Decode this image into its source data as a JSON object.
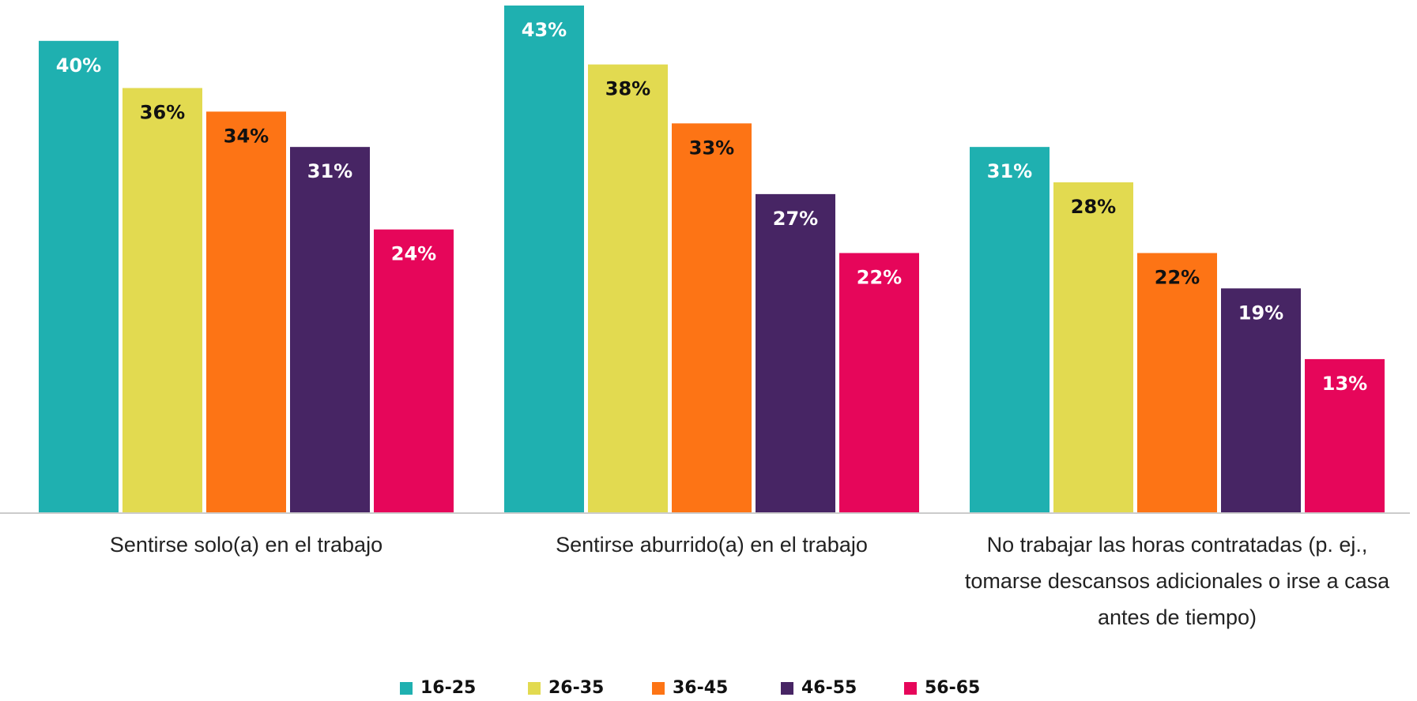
{
  "chart_data": {
    "type": "bar",
    "categories": [
      "Sentirse solo(a) en el trabajo",
      "Sentirse aburrido(a) en el trabajo",
      "No trabajar las horas contratadas (p. ej., tomarse descansos adicionales o irse a casa antes de tiempo)"
    ],
    "series": [
      {
        "name": "16-25",
        "color": "#1fb0b0",
        "values": [
          40,
          43,
          31
        ],
        "value_labels": [
          "40%",
          "43%",
          "31%"
        ]
      },
      {
        "name": "26-35",
        "color": "#e2da50",
        "values": [
          36,
          38,
          28
        ],
        "value_labels": [
          "36%",
          "38%",
          "28%"
        ]
      },
      {
        "name": "36-45",
        "color": "#fd7415",
        "values": [
          34,
          33,
          22
        ],
        "value_labels": [
          "34%",
          "33%",
          "22%"
        ]
      },
      {
        "name": "46-55",
        "color": "#472564",
        "values": [
          31,
          27,
          19
        ],
        "value_labels": [
          "31%",
          "27%",
          "19%"
        ]
      },
      {
        "name": "56-65",
        "color": "#e6065a",
        "values": [
          24,
          22,
          13
        ],
        "value_labels": [
          "24%",
          "22%",
          "13%"
        ]
      }
    ],
    "legend": "bottom"
  }
}
